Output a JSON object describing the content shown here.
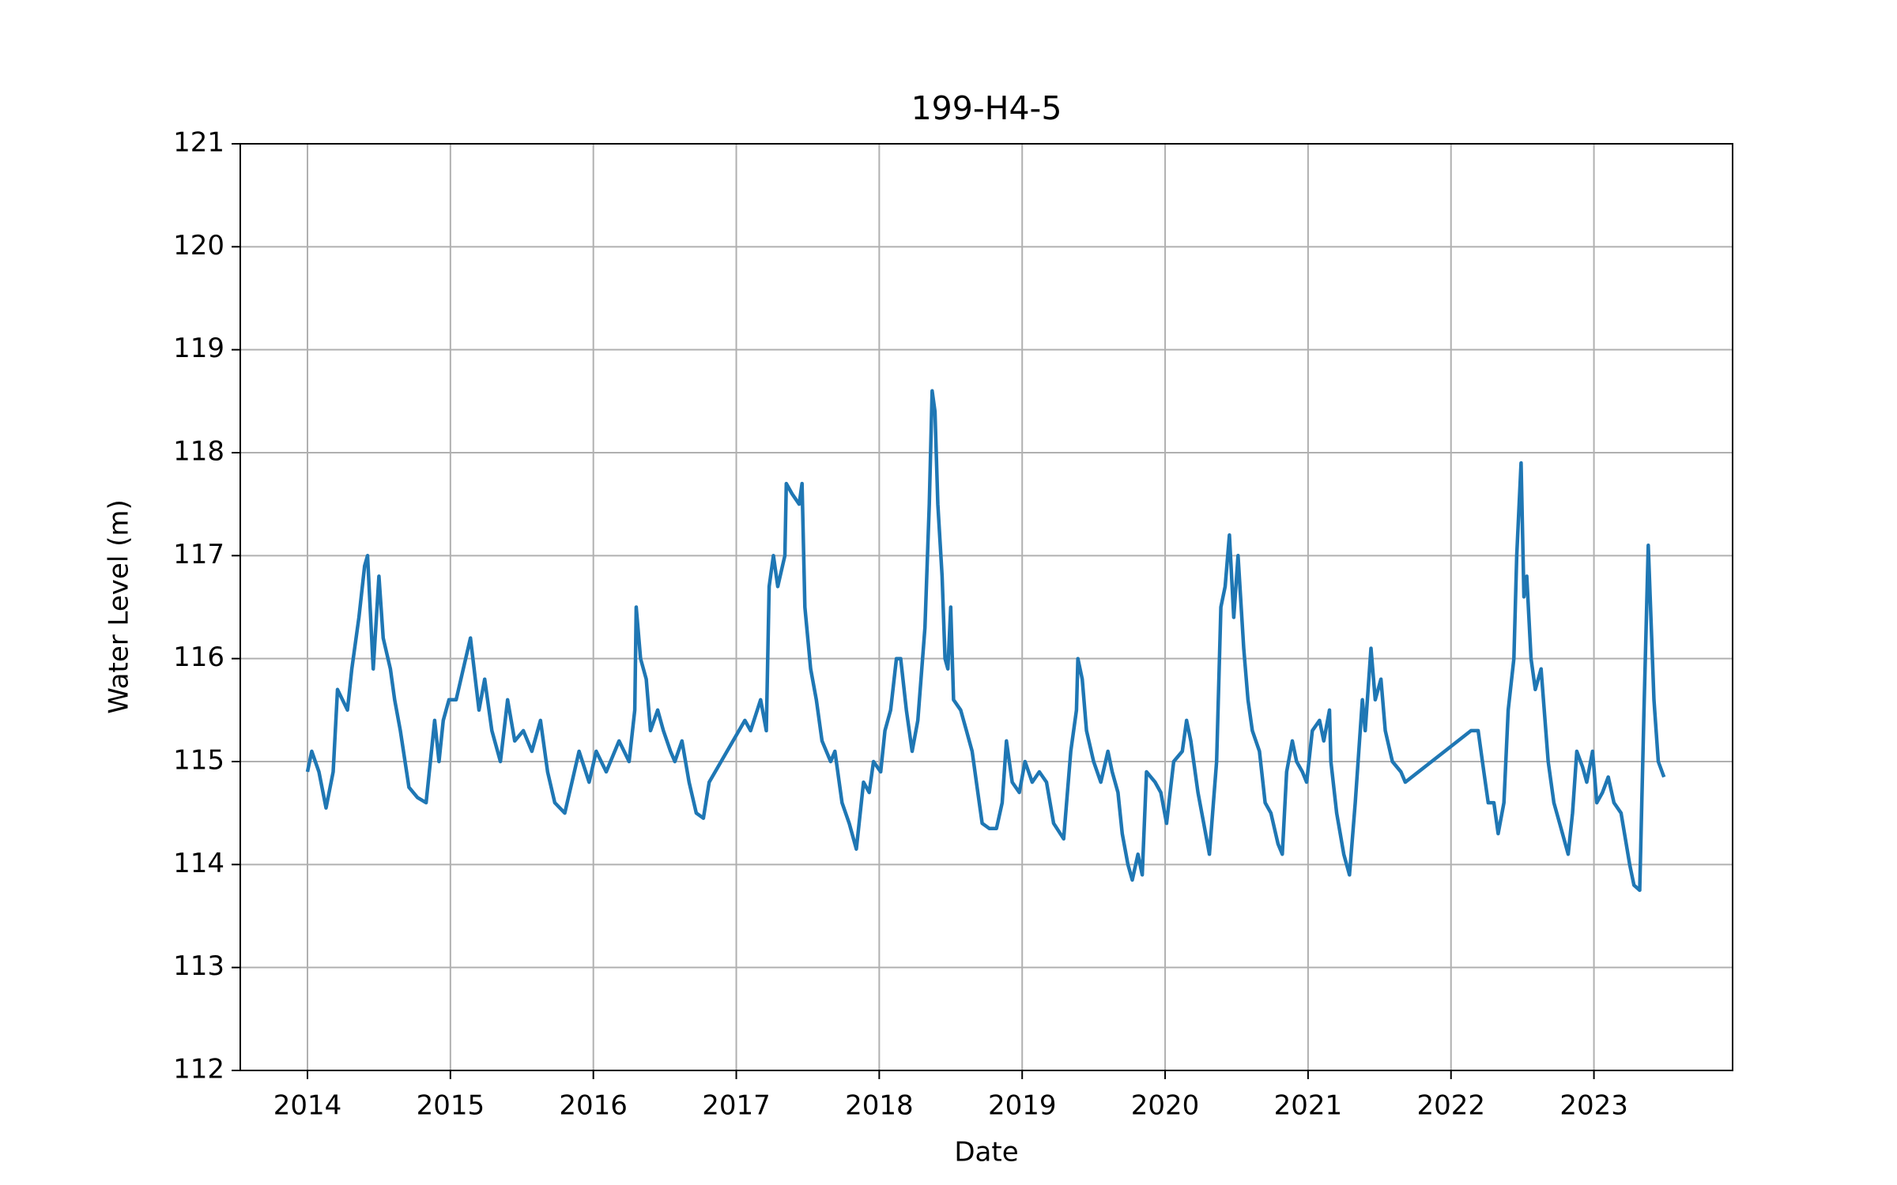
{
  "chart_data": {
    "type": "line",
    "title": "199-H4-5",
    "xlabel": "Date",
    "ylabel": "Water Level (m)",
    "x": [
      2014.0,
      2014.03,
      2014.08,
      2014.13,
      2014.18,
      2014.21,
      2014.28,
      2014.31,
      2014.36,
      2014.4,
      2014.42,
      2014.46,
      2014.5,
      2014.53,
      2014.58,
      2014.61,
      2014.65,
      2014.71,
      2014.77,
      2014.83,
      2014.89,
      2014.92,
      2014.95,
      2014.99,
      2015.04,
      2015.09,
      2015.14,
      2015.2,
      2015.24,
      2015.29,
      2015.35,
      2015.4,
      2015.45,
      2015.51,
      2015.57,
      2015.63,
      2015.68,
      2015.73,
      2015.8,
      2015.85,
      2015.9,
      2015.97,
      2016.02,
      2016.09,
      2016.18,
      2016.25,
      2016.29,
      2016.3,
      2016.33,
      2016.37,
      2016.4,
      2016.45,
      2016.49,
      2016.54,
      2016.57,
      2016.62,
      2016.67,
      2016.72,
      2016.77,
      2016.81,
      2017.06,
      2017.1,
      2017.17,
      2017.21,
      2017.23,
      2017.26,
      2017.29,
      2017.34,
      2017.35,
      2017.39,
      2017.44,
      2017.46,
      2017.48,
      2017.52,
      2017.56,
      2017.6,
      2017.66,
      2017.69,
      2017.74,
      2017.79,
      2017.84,
      2017.89,
      2017.93,
      2017.96,
      2018.01,
      2018.04,
      2018.08,
      2018.12,
      2018.15,
      2018.19,
      2018.23,
      2018.27,
      2018.32,
      2018.35,
      2018.37,
      2018.39,
      2018.41,
      2018.44,
      2018.46,
      2018.48,
      2018.5,
      2018.52,
      2018.57,
      2018.61,
      2018.65,
      2018.69,
      2018.72,
      2018.77,
      2018.82,
      2018.86,
      2018.89,
      2018.93,
      2018.98,
      2019.02,
      2019.07,
      2019.12,
      2019.17,
      2019.22,
      2019.29,
      2019.34,
      2019.38,
      2019.39,
      2019.42,
      2019.45,
      2019.5,
      2019.55,
      2019.6,
      2019.63,
      2019.67,
      2019.7,
      2019.74,
      2019.77,
      2019.81,
      2019.84,
      2019.87,
      2019.93,
      2019.97,
      2020.01,
      2020.06,
      2020.12,
      2020.15,
      2020.18,
      2020.23,
      2020.27,
      2020.31,
      2020.36,
      2020.39,
      2020.42,
      2020.45,
      2020.48,
      2020.51,
      2020.55,
      2020.58,
      2020.61,
      2020.66,
      2020.7,
      2020.74,
      2020.79,
      2020.82,
      2020.85,
      2020.89,
      2020.92,
      2020.96,
      2020.99,
      2021.03,
      2021.08,
      2021.11,
      2021.15,
      2021.16,
      2021.2,
      2021.25,
      2021.29,
      2021.33,
      2021.35,
      2021.38,
      2021.4,
      2021.44,
      2021.47,
      2021.51,
      2021.54,
      2021.59,
      2021.65,
      2021.68,
      2022.14,
      2022.19,
      2022.23,
      2022.26,
      2022.3,
      2022.33,
      2022.37,
      2022.4,
      2022.44,
      2022.46,
      2022.49,
      2022.51,
      2022.53,
      2022.56,
      2022.59,
      2022.63,
      2022.68,
      2022.72,
      2022.76,
      2022.82,
      2022.85,
      2022.88,
      2022.92,
      2022.95,
      2022.99,
      2023.02,
      2023.06,
      2023.1,
      2023.14,
      2023.19,
      2023.25,
      2023.28,
      2023.32,
      2023.35,
      2023.38,
      2023.42,
      2023.45,
      2023.49
    ],
    "values": [
      114.9,
      115.1,
      114.9,
      114.55,
      114.9,
      115.7,
      115.5,
      115.9,
      116.4,
      116.9,
      117.0,
      115.9,
      116.8,
      116.2,
      115.9,
      115.6,
      115.3,
      114.75,
      114.65,
      114.6,
      115.4,
      115.0,
      115.4,
      115.6,
      115.6,
      115.9,
      116.2,
      115.5,
      115.8,
      115.3,
      115.0,
      115.6,
      115.2,
      115.3,
      115.1,
      115.4,
      114.9,
      114.6,
      114.5,
      114.8,
      115.1,
      114.8,
      115.1,
      114.9,
      115.2,
      115.0,
      115.5,
      116.5,
      116.0,
      115.8,
      115.3,
      115.5,
      115.3,
      115.1,
      115.0,
      115.2,
      114.8,
      114.5,
      114.45,
      114.8,
      115.4,
      115.3,
      115.6,
      115.3,
      116.7,
      117.0,
      116.7,
      117.0,
      117.7,
      117.6,
      117.5,
      117.7,
      116.5,
      115.9,
      115.6,
      115.2,
      115.0,
      115.1,
      114.6,
      114.4,
      114.15,
      114.8,
      114.7,
      115.0,
      114.9,
      115.3,
      115.5,
      116.0,
      116.0,
      115.5,
      115.1,
      115.4,
      116.3,
      117.5,
      118.6,
      118.4,
      117.5,
      116.8,
      116.0,
      115.9,
      116.5,
      115.6,
      115.5,
      115.3,
      115.1,
      114.7,
      114.4,
      114.35,
      114.35,
      114.6,
      115.2,
      114.8,
      114.7,
      115.0,
      114.8,
      114.9,
      114.8,
      114.4,
      114.25,
      115.1,
      115.5,
      116.0,
      115.8,
      115.3,
      115.0,
      114.8,
      115.1,
      114.9,
      114.7,
      114.3,
      114.0,
      113.85,
      114.1,
      113.9,
      114.9,
      114.8,
      114.7,
      114.4,
      115.0,
      115.1,
      115.4,
      115.2,
      114.7,
      114.4,
      114.1,
      115.0,
      116.5,
      116.7,
      117.2,
      116.4,
      117.0,
      116.1,
      115.6,
      115.3,
      115.1,
      114.6,
      114.5,
      114.2,
      114.1,
      114.9,
      115.2,
      115.0,
      114.9,
      114.8,
      115.3,
      115.4,
      115.2,
      115.5,
      115.0,
      114.5,
      114.1,
      113.9,
      114.6,
      115.0,
      115.6,
      115.3,
      116.1,
      115.6,
      115.8,
      115.3,
      115.0,
      114.9,
      114.8,
      115.3,
      115.3,
      114.9,
      114.6,
      114.6,
      114.3,
      114.6,
      115.5,
      116.0,
      117.0,
      117.9,
      116.6,
      116.8,
      116.0,
      115.7,
      115.9,
      115.0,
      114.6,
      114.4,
      114.1,
      114.5,
      115.1,
      114.95,
      114.8,
      115.1,
      114.6,
      114.7,
      114.85,
      114.6,
      114.5,
      114.0,
      113.8,
      113.75,
      115.5,
      117.1,
      115.6,
      115.0,
      114.85
    ],
    "color": "#1f77b4",
    "xlim": [
      2013.53,
      2023.97
    ],
    "xticks": [
      2014,
      2015,
      2016,
      2017,
      2018,
      2019,
      2020,
      2021,
      2022,
      2023
    ],
    "ylim": [
      112,
      121
    ],
    "yticks": [
      112,
      113,
      114,
      115,
      116,
      117,
      118,
      119,
      120,
      121
    ],
    "grid": true
  }
}
